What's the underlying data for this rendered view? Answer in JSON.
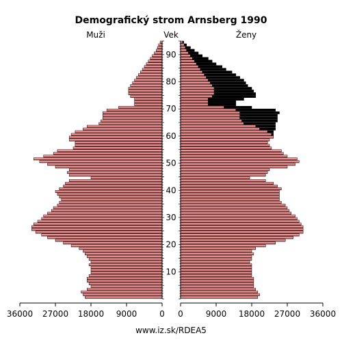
{
  "chart_data": {
    "type": "population-pyramid",
    "title": "Demografický strom Arnsberg 1990",
    "left_label": "Muži",
    "center_label": "Vek",
    "right_label": "Ženy",
    "footer": "www.iz.sk/RDEA5",
    "x_ticks_left": [
      "36000",
      "27000",
      "18000",
      "9000",
      "0"
    ],
    "x_ticks_right": [
      "0",
      "9000",
      "18000",
      "27000",
      "36000"
    ],
    "x_range": [
      0,
      36000
    ],
    "age_ticks": [
      "10",
      "20",
      "30",
      "40",
      "50",
      "60",
      "70",
      "80",
      "90"
    ],
    "age_range": [
      0,
      95
    ],
    "series": [
      {
        "name": "Muži",
        "color": "#cc4a4a"
      },
      {
        "name": "Ženy",
        "color": "#cc4a4a",
        "excess_color": "#000000"
      }
    ],
    "ages": [
      0,
      1,
      2,
      3,
      4,
      5,
      6,
      7,
      8,
      9,
      10,
      11,
      12,
      13,
      14,
      15,
      16,
      17,
      18,
      19,
      20,
      21,
      22,
      23,
      24,
      25,
      26,
      27,
      28,
      29,
      30,
      31,
      32,
      33,
      34,
      35,
      36,
      37,
      38,
      39,
      40,
      41,
      42,
      43,
      44,
      45,
      46,
      47,
      48,
      49,
      50,
      51,
      52,
      53,
      54,
      55,
      56,
      57,
      58,
      59,
      60,
      61,
      62,
      63,
      64,
      65,
      66,
      67,
      68,
      69,
      70,
      71,
      72,
      73,
      74,
      75,
      76,
      77,
      78,
      79,
      80,
      81,
      82,
      83,
      84,
      85,
      86,
      87,
      88,
      89,
      90,
      91,
      92,
      93,
      94
    ],
    "male": [
      19500,
      20000,
      20500,
      19000,
      18000,
      18500,
      19000,
      19000,
      18500,
      18000,
      18000,
      18000,
      18500,
      18000,
      18500,
      19000,
      19500,
      20000,
      21000,
      23000,
      25000,
      27000,
      29000,
      30500,
      32000,
      33000,
      33000,
      32500,
      31500,
      30500,
      30000,
      29000,
      28000,
      27500,
      26500,
      26000,
      25500,
      26000,
      26500,
      27000,
      26000,
      25000,
      24500,
      23500,
      18000,
      23500,
      24000,
      23500,
      27000,
      29000,
      31000,
      32500,
      30000,
      27500,
      26500,
      22500,
      22000,
      22000,
      23500,
      23500,
      23000,
      22000,
      20000,
      19000,
      16000,
      15500,
      15000,
      15000,
      15000,
      14000,
      11000,
      7000,
      7000,
      7000,
      8000,
      8500,
      8500,
      8500,
      8000,
      7500,
      7000,
      6500,
      6000,
      5500,
      5000,
      4500,
      4000,
      3500,
      3000,
      2500,
      2000,
      1500,
      1200,
      900,
      500
    ],
    "female": [
      19500,
      20000,
      19500,
      19000,
      18500,
      18500,
      18500,
      18500,
      18000,
      18000,
      18000,
      18000,
      18000,
      17500,
      18000,
      18000,
      18500,
      18000,
      19000,
      21500,
      24000,
      26500,
      28500,
      30000,
      31000,
      31000,
      31000,
      30500,
      30000,
      29500,
      29000,
      28000,
      27500,
      27000,
      26500,
      25500,
      25000,
      25000,
      25000,
      25000,
      25500,
      24500,
      23500,
      21500,
      17500,
      21500,
      22000,
      22500,
      27000,
      29000,
      30000,
      29500,
      27000,
      26000,
      25500,
      23000,
      22500,
      22000,
      22500,
      23500,
      23500,
      23500,
      24000,
      24000,
      24000,
      24500,
      24500,
      24500,
      25000,
      24000,
      18000,
      14000,
      14000,
      16000,
      19000,
      19000,
      18500,
      18000,
      17000,
      16500,
      16000,
      15000,
      14000,
      13000,
      11500,
      10500,
      9000,
      8000,
      7000,
      5500,
      4500,
      3500,
      2500,
      1500,
      800
    ],
    "female_base": [
      19500,
      20000,
      19500,
      19000,
      18500,
      18500,
      18500,
      18500,
      18000,
      18000,
      18000,
      18000,
      18000,
      17500,
      18000,
      18000,
      18500,
      18000,
      19000,
      21500,
      24000,
      26500,
      28500,
      30000,
      31000,
      31000,
      31000,
      30500,
      30000,
      29500,
      29000,
      28000,
      27500,
      27000,
      26500,
      25500,
      25000,
      25000,
      25000,
      25000,
      25500,
      24500,
      23500,
      21500,
      17500,
      21500,
      22000,
      22500,
      27000,
      29000,
      30000,
      29500,
      27000,
      26000,
      25500,
      23000,
      22500,
      22000,
      22500,
      23500,
      23000,
      22000,
      20000,
      19000,
      16000,
      15500,
      15000,
      15000,
      15000,
      14000,
      11000,
      7000,
      7000,
      7000,
      8000,
      8500,
      8500,
      8500,
      8000,
      7500,
      7000,
      6500,
      6000,
      5500,
      5000,
      4500,
      4000,
      3500,
      3000,
      2500,
      2000,
      1500,
      1200,
      900,
      500
    ]
  }
}
